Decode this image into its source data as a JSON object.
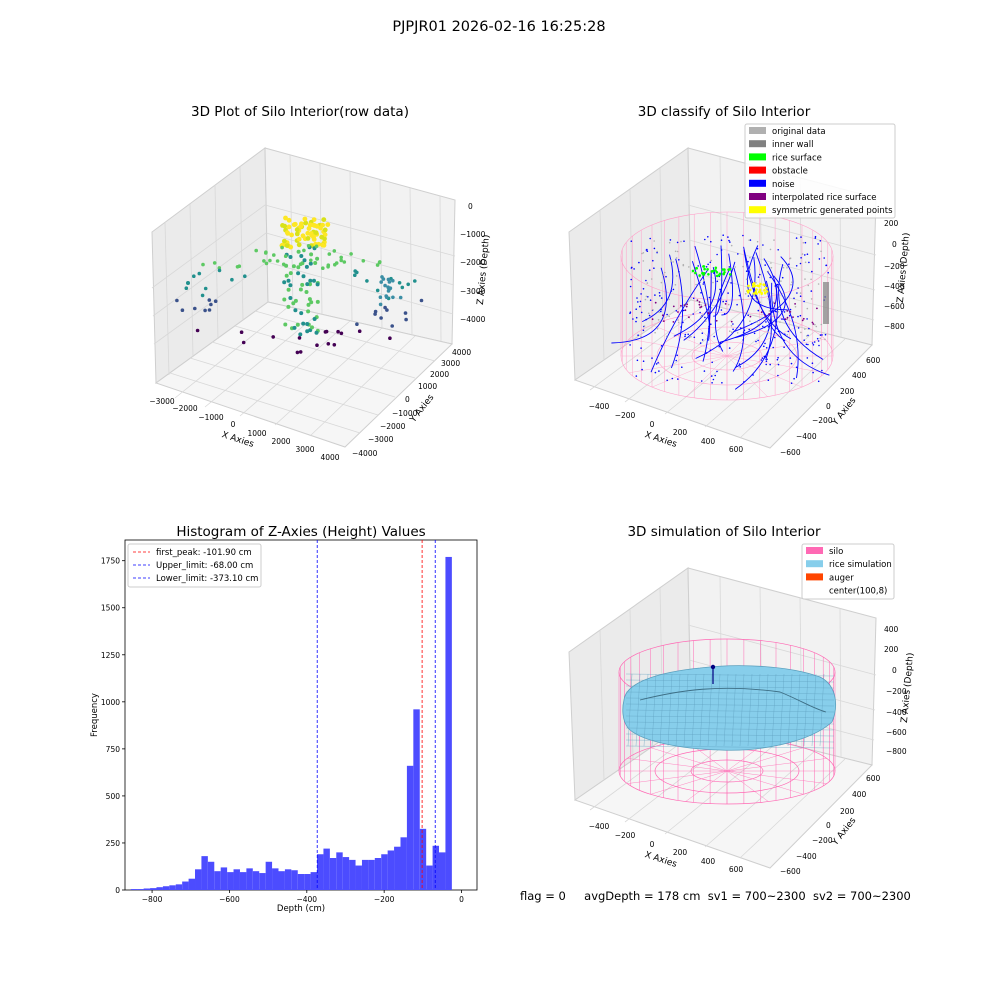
{
  "suptitle": "PJPJR01 2026-02-16 16:25:28",
  "footer": {
    "flag": "flag = 0",
    "avg": "avgDepth = 178 cm",
    "sv1": "sv1 = 700~2300",
    "sv2": "sv2 = 700~2300"
  },
  "colors": {
    "hist_bar": "#4c4cff",
    "first_peak": "#ff0000",
    "limits": "#0000ff",
    "silo_pink": "#ff69b4",
    "rice_sim": "#87ceeb",
    "auger": "#ff4500",
    "original": "#b0b0b0",
    "inner_wall": "#808080",
    "rice_surface": "#00ff00",
    "obstacle": "#ff0000",
    "noise": "#0000ff",
    "interp": "#800080",
    "symmetric": "#ffff00"
  },
  "chart_data": [
    {
      "type": "scatter",
      "title": "3D Plot of Silo Interior(row data)",
      "xlabel": "X Axies",
      "ylabel": "Y Axies",
      "zlabel": "Z Axies (Depth)",
      "x_ticks": [
        "−3000",
        "−2000",
        "−1000",
        "0",
        "1000",
        "2000",
        "3000",
        "4000"
      ],
      "y_ticks": [
        "−4000",
        "−3000",
        "−2000",
        "−1000",
        "0",
        "1000",
        "2000",
        "3000",
        "4000"
      ],
      "z_ticks": [
        "−4000",
        "−3000",
        "−2000",
        "−1000",
        "0"
      ],
      "xlim": [
        -3200,
        4200
      ],
      "ylim": [
        -4200,
        4200
      ],
      "zlim": [
        -4600,
        200
      ]
    },
    {
      "type": "scatter",
      "title": "3D classify of Silo Interior",
      "xlabel": "X Axies",
      "ylabel": "Y Axies",
      "zlabel": "Z Axies (Depth)",
      "x_ticks": [
        "−400",
        "−200",
        "0",
        "200",
        "400",
        "600"
      ],
      "y_ticks": [
        "−600",
        "−400",
        "−200",
        "0",
        "200",
        "400",
        "600"
      ],
      "z_ticks": [
        "−800",
        "−600",
        "−400",
        "−200",
        "0",
        "200"
      ],
      "legend": [
        "original data",
        "inner wall",
        "rice surface",
        "obstacle",
        "noise",
        "interpolated rice surface",
        "symmetric generated points"
      ],
      "legend_position": "top-right"
    },
    {
      "type": "bar",
      "title": "Histogram of Z-Axies (Height) Values",
      "xlabel": "Depth (cm)",
      "ylabel": "Frequency",
      "xlim": [
        -870,
        40
      ],
      "ylim": [
        0,
        1860
      ],
      "x_ticks": [
        -800,
        -600,
        -400,
        -200,
        0
      ],
      "x_tick_labels": [
        "−800",
        "−600",
        "−400",
        "−200",
        "0"
      ],
      "y_ticks": [
        0,
        250,
        500,
        750,
        1000,
        1250,
        1500,
        1750
      ],
      "bin_start": -855,
      "bin_width": 16.6,
      "values": [
        5,
        5,
        8,
        10,
        15,
        20,
        25,
        30,
        45,
        60,
        110,
        180,
        150,
        100,
        120,
        95,
        110,
        95,
        115,
        100,
        90,
        150,
        115,
        100,
        110,
        105,
        85,
        85,
        95,
        190,
        220,
        170,
        200,
        175,
        160,
        130,
        160,
        160,
        170,
        190,
        210,
        230,
        280,
        660,
        960,
        325,
        130,
        235,
        200,
        1770
      ],
      "lines": [
        {
          "label": "first_peak: -101.90 cm",
          "value": -101.9,
          "style": "red"
        },
        {
          "label": "Upper_limit: -68.00 cm",
          "value": -68.0,
          "style": "blue"
        },
        {
          "label": "Lower_limit: -373.10 cm",
          "value": -373.1,
          "style": "blue"
        }
      ],
      "legend_position": "top-left"
    },
    {
      "type": "scatter",
      "title": "3D simulation of Silo Interior",
      "xlabel": "X Axies",
      "ylabel": "Y Axies",
      "zlabel": "Z Axies (Depth)",
      "x_ticks": [
        "−400",
        "−200",
        "0",
        "200",
        "400",
        "600"
      ],
      "y_ticks": [
        "−600",
        "−400",
        "−200",
        "0",
        "200",
        "400",
        "600"
      ],
      "z_ticks": [
        "−800",
        "−600",
        "−400",
        "−200",
        "0",
        "200",
        "400"
      ],
      "legend": [
        "silo",
        "rice simulation",
        "auger",
        "center(100,8)"
      ],
      "legend_position": "top-right"
    }
  ]
}
